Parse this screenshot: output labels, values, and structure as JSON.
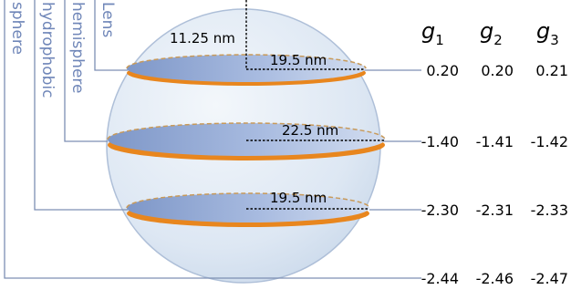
{
  "brackets": {
    "lens": "Lens",
    "hemisphere": "hemisphere",
    "hydrophobic": "hydrophobic",
    "sphere": "sphere"
  },
  "dimensions": {
    "height_top": "11.25 nm",
    "radius_top": "19.5 nm",
    "radius_middle": "22.5 nm",
    "radius_bottom": "19.5 nm"
  },
  "table": {
    "headers": [
      {
        "symbol": "g",
        "subscript": "1"
      },
      {
        "symbol": "g",
        "subscript": "2"
      },
      {
        "symbol": "g",
        "subscript": "3"
      }
    ],
    "rows": [
      [
        "0.20",
        "0.20",
        "0.21"
      ],
      [
        "-1.40",
        "-1.41",
        "-1.42"
      ],
      [
        "-2.30",
        "-2.31",
        "-2.33"
      ],
      [
        "-2.44",
        "-2.46",
        "-2.47"
      ]
    ]
  },
  "colors": {
    "sphere_fill": "#dde7f3",
    "sphere_edge": "#aebfd8",
    "disc_fill_light": "#c9d6ec",
    "disc_fill_dark": "#7e97c8",
    "rim_orange": "#e8861e",
    "leader_line": "#7d8fb3"
  }
}
